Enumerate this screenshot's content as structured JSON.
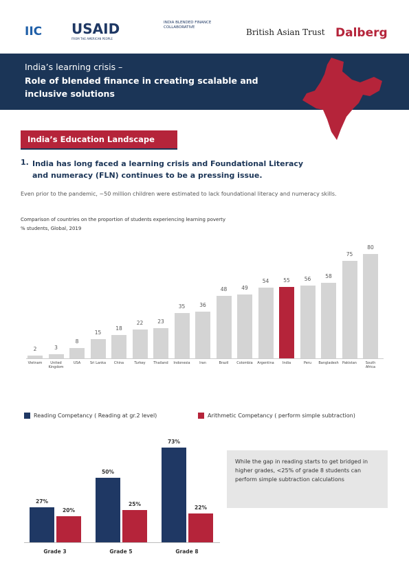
{
  "logos": {
    "iic": "IIC",
    "usaid": "USAID",
    "usaid_tag": "FROM THE AMERICAN PEOPLE",
    "ibfc": "INDIA BLENDED FINANCE COLLABORATIVE",
    "bat": "British Asian Trust",
    "dalberg": "Dalberg"
  },
  "banner": {
    "line1": "India’s learning crisis –",
    "line2": "Role of blended finance in creating scalable and inclusive solutions"
  },
  "section": "India’s Education Landscape",
  "heading": {
    "number": "1.",
    "text": "India has long faced a learning crisis and Foundational Literacy and numeracy (FLN) continues to be a pressing issue."
  },
  "paragraph": "Even prior to the pandemic, ~50 million children were estimated to lack foundational literacy and numeracy skills.",
  "chart_data": [
    {
      "type": "bar",
      "title": "Comparison of countries on the proportion of students experiencing learning poverty",
      "subtitle": "% students, Global, 2019",
      "categories": [
        "Vietnam",
        "United Kingdom",
        "USA",
        "Sri Lanka",
        "China",
        "Turkey",
        "Thailand",
        "Indonesia",
        "Iran",
        "Brazil",
        "Colombia",
        "Argentina",
        "India",
        "Peru",
        "Bangladesh",
        "Pakistan",
        "South Africa"
      ],
      "values": [
        2,
        3,
        8,
        15,
        18,
        22,
        23,
        35,
        36,
        48,
        49,
        54,
        55,
        56,
        58,
        75,
        80
      ],
      "color": "#d4d4d4",
      "highlight": "India",
      "highlight_color": "#b5243a"
    },
    {
      "type": "bar",
      "categories": [
        "Grade 3",
        "Grade 5",
        "Grade 8"
      ],
      "series": [
        {
          "name": "Reading Competancy ( Reading at gr.2 level)",
          "color": "#1f3864",
          "values": [
            27,
            50,
            73
          ],
          "value_labels": [
            "27%",
            "50%",
            "73%"
          ]
        },
        {
          "name": "Arithmetic Competancy ( perform simple subtraction)",
          "color": "#b5243a",
          "values": [
            20,
            25,
            22
          ],
          "value_labels": [
            "20%",
            "25%",
            "22%"
          ]
        }
      ],
      "annotation": "While the gap in reading starts to get bridged in higher grades, <25% of grade 8 students can perform simple subtraction calculations"
    }
  ]
}
